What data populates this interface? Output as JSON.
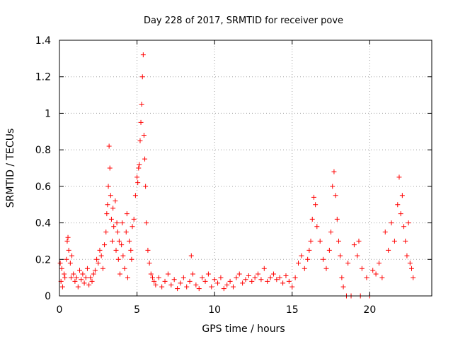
{
  "chart_data": {
    "type": "scatter",
    "title": "Day 228 of 2017, SRMTID for receiver pove",
    "xlabel": "GPS time / hours",
    "ylabel": "SRMTID / TECUs",
    "xlim": [
      0,
      24
    ],
    "ylim": [
      0,
      1.4
    ],
    "xticks": [
      0,
      5,
      10,
      15,
      20
    ],
    "yticks": [
      0,
      0.2,
      0.4,
      0.6,
      0.8,
      1,
      1.2,
      1.4
    ],
    "ytick_labels": [
      "0",
      "0.2",
      "0.4",
      "0.6",
      "0.8",
      "1",
      "1.2",
      "1.4"
    ],
    "grid": true,
    "marker": "+",
    "marker_color": "#ff0000",
    "series": [
      {
        "name": "SRMTID",
        "x": [
          0.05,
          0.1,
          0.15,
          0.2,
          0.3,
          0.35,
          0.45,
          0.5,
          0.55,
          0.6,
          0.7,
          0.75,
          0.8,
          0.9,
          1.0,
          1.1,
          1.2,
          1.3,
          1.4,
          1.5,
          1.6,
          1.7,
          1.8,
          1.9,
          2.0,
          2.1,
          2.2,
          2.3,
          2.4,
          2.5,
          2.6,
          2.7,
          2.8,
          2.9,
          3.0,
          3.05,
          3.1,
          3.15,
          3.2,
          3.25,
          3.3,
          3.35,
          3.4,
          3.45,
          3.5,
          3.6,
          3.65,
          3.7,
          3.75,
          3.8,
          3.85,
          3.9,
          4.0,
          4.05,
          4.1,
          4.2,
          4.3,
          4.35,
          4.4,
          4.5,
          4.6,
          4.65,
          4.7,
          4.8,
          4.9,
          5.0,
          5.05,
          5.1,
          5.15,
          5.2,
          5.25,
          5.3,
          5.35,
          5.4,
          5.45,
          5.5,
          5.55,
          5.6,
          5.7,
          5.8,
          5.9,
          6.0,
          6.1,
          6.2,
          6.4,
          6.6,
          6.8,
          7.0,
          7.2,
          7.4,
          7.6,
          7.8,
          8.0,
          8.2,
          8.4,
          8.5,
          8.6,
          8.8,
          9.0,
          9.2,
          9.4,
          9.6,
          9.8,
          10.0,
          10.2,
          10.4,
          10.6,
          10.8,
          11.0,
          11.2,
          11.4,
          11.6,
          11.8,
          12.0,
          12.2,
          12.4,
          12.6,
          12.8,
          13.0,
          13.2,
          13.4,
          13.6,
          13.8,
          14.0,
          14.2,
          14.4,
          14.6,
          14.8,
          15.0,
          15.2,
          15.4,
          15.6,
          15.8,
          16.0,
          16.1,
          16.2,
          16.3,
          16.4,
          16.5,
          16.6,
          16.8,
          17.0,
          17.2,
          17.4,
          17.5,
          17.6,
          17.7,
          17.8,
          17.9,
          18.0,
          18.1,
          18.2,
          18.3,
          18.5,
          18.6,
          18.8,
          19.0,
          19.2,
          19.3,
          19.4,
          19.5,
          19.8,
          20.0,
          20.2,
          20.4,
          20.6,
          20.8,
          21.0,
          21.2,
          21.4,
          21.6,
          21.8,
          21.9,
          22.0,
          22.1,
          22.2,
          22.3,
          22.4,
          22.5,
          22.6,
          22.7,
          22.8
        ],
        "y": [
          0.18,
          0.08,
          0.15,
          0.05,
          0.12,
          0.1,
          0.2,
          0.3,
          0.32,
          0.25,
          0.18,
          0.1,
          0.22,
          0.12,
          0.08,
          0.1,
          0.05,
          0.14,
          0.09,
          0.12,
          0.07,
          0.1,
          0.15,
          0.06,
          0.1,
          0.08,
          0.12,
          0.14,
          0.2,
          0.18,
          0.25,
          0.22,
          0.15,
          0.28,
          0.35,
          0.45,
          0.5,
          0.6,
          0.82,
          0.7,
          0.55,
          0.42,
          0.3,
          0.48,
          0.38,
          0.52,
          0.25,
          0.4,
          0.35,
          0.2,
          0.3,
          0.12,
          0.28,
          0.4,
          0.22,
          0.15,
          0.35,
          0.45,
          0.1,
          0.3,
          0.25,
          0.2,
          0.38,
          0.42,
          0.55,
          0.65,
          0.62,
          0.7,
          0.72,
          0.85,
          0.95,
          1.05,
          1.2,
          1.32,
          0.88,
          0.75,
          0.6,
          0.4,
          0.25,
          0.18,
          0.12,
          0.1,
          0.08,
          0.06,
          0.1,
          0.05,
          0.08,
          0.12,
          0.06,
          0.09,
          0.04,
          0.07,
          0.1,
          0.05,
          0.08,
          0.22,
          0.12,
          0.06,
          0.04,
          0.1,
          0.08,
          0.12,
          0.05,
          0.09,
          0.07,
          0.1,
          0.04,
          0.06,
          0.08,
          0.05,
          0.1,
          0.12,
          0.07,
          0.09,
          0.11,
          0.08,
          0.1,
          0.12,
          0.09,
          0.15,
          0.08,
          0.1,
          0.12,
          0.09,
          0.1,
          0.07,
          0.11,
          0.08,
          0.05,
          0.1,
          0.18,
          0.22,
          0.15,
          0.2,
          0.25,
          0.3,
          0.42,
          0.54,
          0.5,
          0.38,
          0.3,
          0.2,
          0.15,
          0.25,
          0.35,
          0.6,
          0.68,
          0.55,
          0.42,
          0.3,
          0.22,
          0.1,
          0.05,
          0.0,
          0.18,
          0.0,
          0.28,
          0.22,
          0.3,
          0.0,
          0.15,
          0.1,
          0.0,
          0.14,
          0.12,
          0.18,
          0.1,
          0.35,
          0.25,
          0.4,
          0.3,
          0.5,
          0.65,
          0.45,
          0.55,
          0.38,
          0.3,
          0.22,
          0.4,
          0.18,
          0.15,
          0.1
        ]
      }
    ]
  }
}
